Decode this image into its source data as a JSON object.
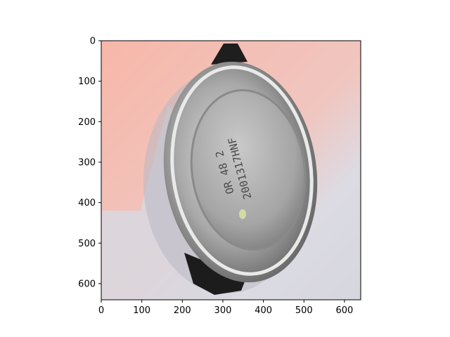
{
  "figure": {
    "background": "#ffffff"
  },
  "image": {
    "subject": "can-bottom-photo",
    "printed_text_lines": [
      "OR 48 2",
      "2001317HNF"
    ],
    "colors": {
      "background_pink": "#f5b8ab",
      "background_gray": "#d9d9e0",
      "shadow": "#b9b9c4",
      "metal_light": "#cfcfcf",
      "metal_dark": "#6c6c6c",
      "tab_black": "#1e1e1e",
      "blemish": "#d9e3a6"
    }
  },
  "axes": {
    "x_ticks": [
      "0",
      "100",
      "200",
      "300",
      "400",
      "500",
      "600"
    ],
    "y_ticks": [
      "0",
      "100",
      "200",
      "300",
      "400",
      "500",
      "600"
    ],
    "xlim": [
      0,
      640
    ],
    "ylim_top_to_bottom": [
      0,
      640
    ],
    "spine_color": "#000000"
  }
}
